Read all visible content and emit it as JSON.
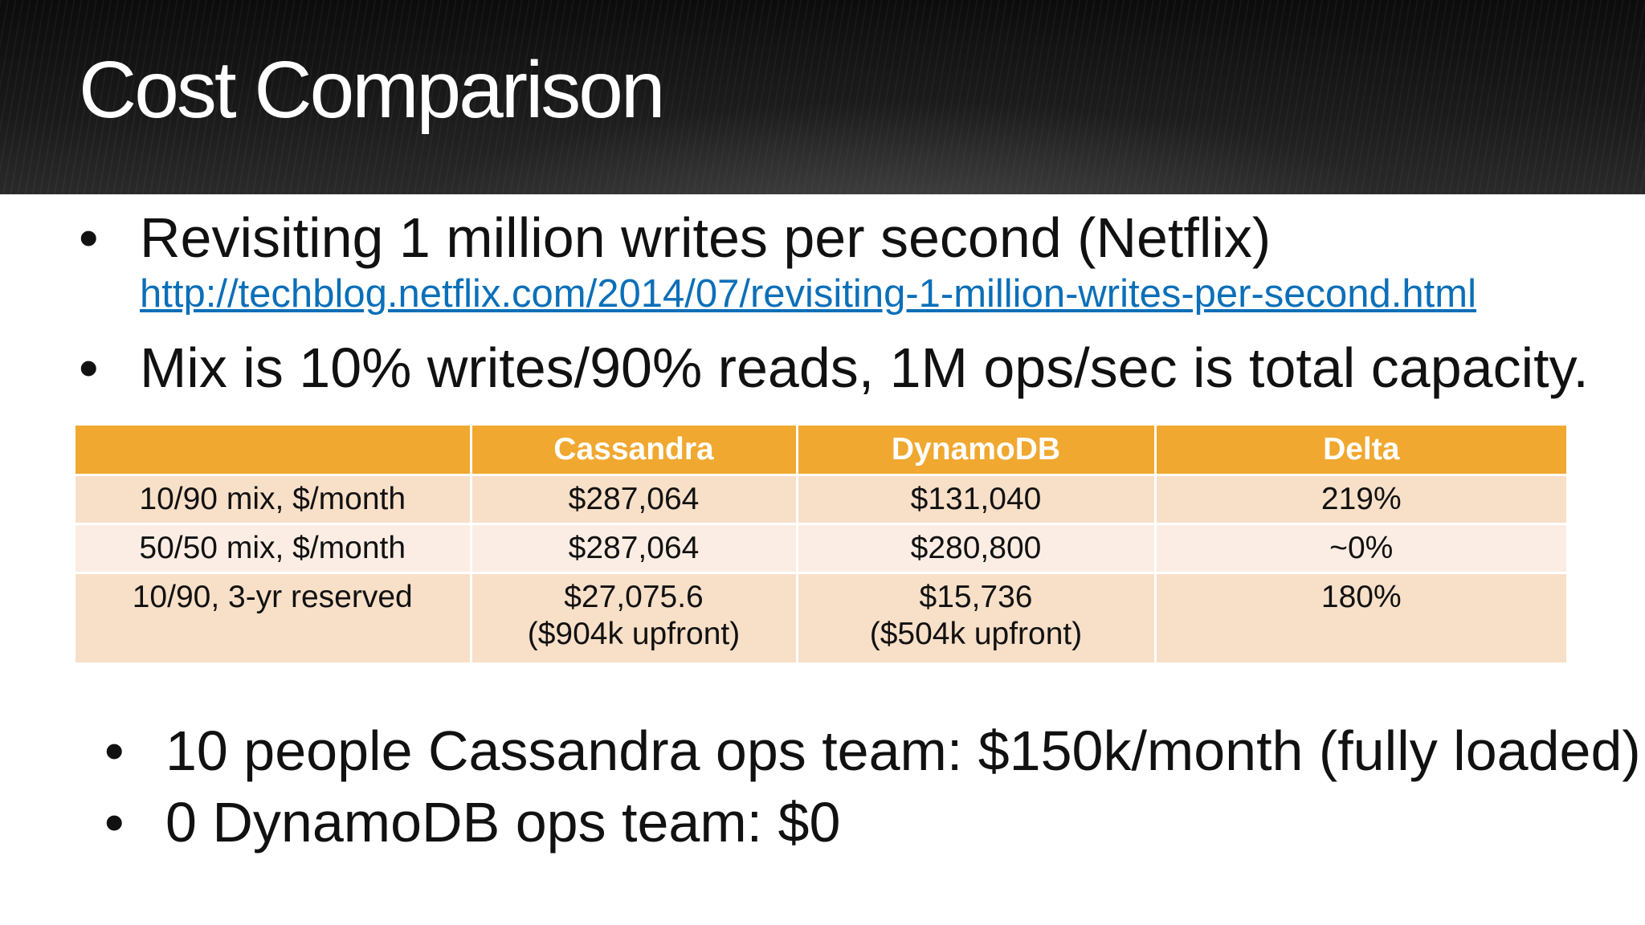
{
  "slide": {
    "title": "Cost Comparison",
    "bullets_top": [
      {
        "marker": "•",
        "text": "Revisiting 1 million writes per second (Netflix)",
        "link": "http://techblog.netflix.com/2014/07/revisiting-1-million-writes-per-second.html"
      },
      {
        "marker": "•",
        "text": "Mix is 10% writes/90% reads, 1M ops/sec is total capacity."
      }
    ],
    "table": {
      "headers": [
        "",
        "Cassandra",
        "DynamoDB",
        "Delta"
      ],
      "rows": [
        {
          "label": "10/90 mix, $/month",
          "cassandra": "$287,064",
          "dynamodb": "$131,040",
          "delta": "219%"
        },
        {
          "label": "50/50 mix, $/month",
          "cassandra": "$287,064",
          "dynamodb": "$280,800",
          "delta": "~0%"
        },
        {
          "label": "10/90, 3-yr reserved",
          "cassandra": "$27,075.6",
          "cassandra_note": "($904k upfront)",
          "dynamodb": "$15,736",
          "dynamodb_note": "($504k upfront)",
          "delta": "180%"
        }
      ]
    },
    "bullets_bottom": [
      {
        "marker": "•",
        "text": "10 people Cassandra ops team: $150k/month (fully loaded)"
      },
      {
        "marker": "•",
        "text": "0 DynamoDB ops team: $0"
      }
    ]
  }
}
